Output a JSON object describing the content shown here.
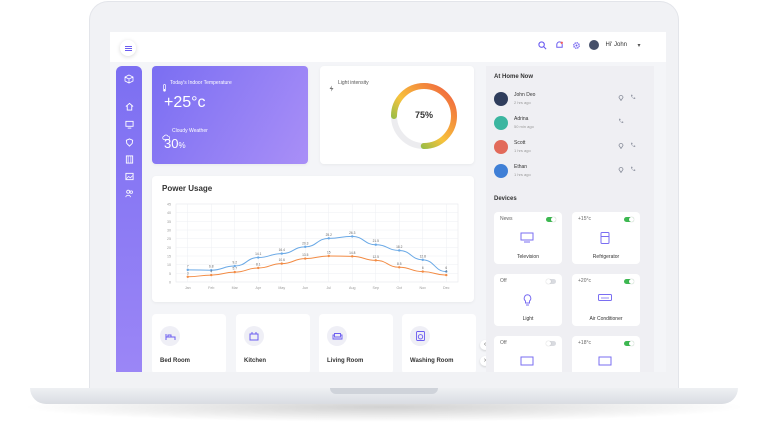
{
  "header": {
    "greeting": "Hi' John",
    "icons": [
      "search-icon",
      "bell-icon",
      "gear-icon",
      "avatar",
      "chevron-down-icon"
    ]
  },
  "sidebar": {
    "icons": [
      "cube-icon",
      "home-icon",
      "monitor-icon",
      "shield-icon",
      "film-icon",
      "image-icon",
      "users-icon"
    ]
  },
  "indoor_temperature": {
    "label": "Today's Indoor Temperature",
    "value": "+25°c",
    "weather_label": "Cloudy Weather",
    "weather_value": "30",
    "weather_unit": "%"
  },
  "light_intensity": {
    "label": "Light intensity",
    "value": "75%",
    "fraction": 0.75
  },
  "power_usage": {
    "title": "Power Usage"
  },
  "chart_data": {
    "type": "line",
    "title": "Power Usage",
    "categories": [
      "Jan",
      "Feb",
      "Mar",
      "Apr",
      "May",
      "Jun",
      "Jul",
      "Aug",
      "Sep",
      "Oct",
      "Nov",
      "Dec"
    ],
    "ylim": [
      0,
      45
    ],
    "yticks": [
      0,
      5,
      10,
      15,
      20,
      25,
      30,
      35,
      40,
      45
    ],
    "series": [
      {
        "color": "#6aa9e6",
        "values": [
          7,
          6.8,
          9.2,
          14.1,
          16.4,
          20.3,
          25.2,
          26.3,
          21.5,
          18.2,
          12.8,
          6
        ]
      },
      {
        "color": "#f28b44",
        "values": [
          3,
          4,
          5.7,
          8.1,
          10.6,
          13.5,
          15,
          14.8,
          12.5,
          8.5,
          6,
          4
        ]
      }
    ],
    "data_labels": [
      [
        "7",
        "6.8",
        "9.2",
        "14.1",
        "16.4",
        "20.3",
        "25.2",
        "26.3",
        "21.5",
        "18.2",
        "12.8",
        "6"
      ],
      [
        "3",
        "4",
        "5.7",
        "8.1",
        "10.6",
        "13.5",
        "15",
        "14.8",
        "12.5",
        "8.5",
        "6",
        "4"
      ]
    ],
    "grid": true
  },
  "rooms": [
    {
      "label": "Bed Room",
      "icon": "bed-icon"
    },
    {
      "label": "Kitchen",
      "icon": "kitchen-icon"
    },
    {
      "label": "Living Room",
      "icon": "sofa-icon"
    },
    {
      "label": "Washing Room",
      "icon": "washing-machine-icon"
    }
  ],
  "at_home": {
    "title": "At Home Now",
    "people": [
      {
        "name": "John Deo",
        "time": "2 hrs ago",
        "avatar_color": "#2f3d5c",
        "actions": [
          "location-icon",
          "phone-icon"
        ]
      },
      {
        "name": "Adrina",
        "time": "50 min ago",
        "avatar_color": "#3bb6a0",
        "actions": [
          "phone-icon"
        ]
      },
      {
        "name": "Scott",
        "time": "1 hrs ago",
        "avatar_color": "#e26a5a",
        "actions": [
          "location-icon",
          "phone-icon"
        ]
      },
      {
        "name": "Ethan",
        "time": "1 hrs ago",
        "avatar_color": "#3f7fd6",
        "actions": [
          "location-icon",
          "phone-icon"
        ]
      }
    ]
  },
  "devices": {
    "title": "Devices",
    "items": [
      {
        "status": "News",
        "label": "Television",
        "on": true,
        "icon": "tv-icon"
      },
      {
        "status": "+15°c",
        "label": "Refrigerator",
        "on": true,
        "icon": "fridge-icon"
      },
      {
        "status": "Off",
        "label": "Light",
        "on": false,
        "icon": "bulb-icon"
      },
      {
        "status": "+20°c",
        "label": "Air Conditioner",
        "on": true,
        "icon": "air-conditioner-icon"
      },
      {
        "status": "Off",
        "label": "",
        "on": false,
        "icon": "device-icon"
      },
      {
        "status": "+18°c",
        "label": "",
        "on": true,
        "icon": "device-icon"
      }
    ]
  }
}
